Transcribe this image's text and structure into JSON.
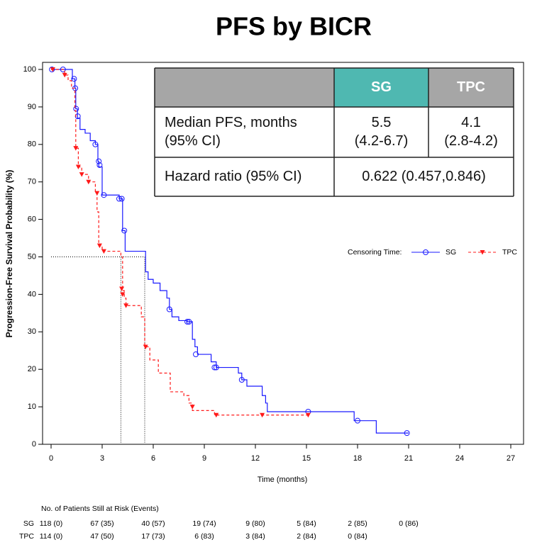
{
  "chart_data": {
    "type": "step",
    "title": "PFS by BICR",
    "x_label": "Time (months)",
    "y_label": "Progression-Free Survival Probability (%)",
    "xlim": [
      0,
      27
    ],
    "ylim": [
      0,
      100
    ],
    "xticks": [
      0,
      3,
      6,
      9,
      12,
      15,
      18,
      21,
      24,
      27
    ],
    "yticks": [
      0,
      10,
      20,
      30,
      40,
      50,
      60,
      70,
      80,
      90,
      100
    ],
    "reference": {
      "y": 50,
      "x": [
        4.1,
        5.5
      ]
    },
    "legend": {
      "title": "Censoring Time:",
      "position": "right"
    },
    "series": [
      {
        "name": "SG",
        "color": "#1a1aff",
        "dash": false,
        "marker": "circle",
        "x": [
          0,
          1.25,
          1.4,
          1.45,
          1.55,
          1.7,
          2.0,
          2.3,
          2.6,
          2.75,
          2.8,
          3.0,
          4.0,
          4.2,
          4.35,
          5.55,
          5.7,
          6.0,
          6.4,
          6.8,
          6.95,
          7.1,
          7.5,
          8.0,
          8.3,
          8.45,
          8.6,
          9.4,
          9.7,
          11.0,
          11.2,
          11.5,
          12.4,
          12.6,
          12.7,
          17.8,
          19.1,
          21.0
        ],
        "values": [
          100,
          97.5,
          95,
          89.5,
          87,
          84,
          83,
          81,
          80,
          75.5,
          74,
          66.5,
          65.5,
          57,
          51.5,
          46,
          44,
          43,
          41,
          39,
          36,
          34,
          33,
          32.7,
          28,
          26,
          24,
          22,
          20.5,
          19,
          17.2,
          15.5,
          13,
          11,
          8.7,
          6.3,
          3,
          3
        ],
        "censor_x": [
          0.05,
          0.7,
          1.35,
          1.42,
          1.47,
          1.57,
          2.6,
          2.8,
          2.85,
          3.1,
          4.0,
          4.15,
          4.3,
          6.95,
          8.0,
          8.1,
          8.5,
          9.6,
          9.7,
          11.2,
          15.1,
          18.0,
          20.9
        ],
        "censor_y": [
          100,
          100,
          97.5,
          95,
          89.5,
          87.5,
          80,
          75.5,
          74.5,
          66.5,
          65.5,
          65.5,
          57,
          36,
          32.7,
          32.7,
          24,
          20.5,
          20.5,
          17.2,
          8.7,
          6.3,
          3
        ]
      },
      {
        "name": "TPC",
        "color": "#ff1a1a",
        "dash": true,
        "marker": "triangle",
        "x": [
          0,
          0.8,
          1.0,
          1.2,
          1.4,
          1.45,
          1.6,
          1.8,
          2.2,
          2.6,
          2.7,
          2.8,
          3.0,
          4.1,
          4.2,
          4.3,
          4.4,
          5.3,
          5.5,
          5.8,
          6.3,
          7.0,
          7.8,
          8.1,
          8.3,
          9.6,
          15.2
        ],
        "values": [
          100,
          98.5,
          97,
          95,
          89,
          79,
          74,
          72,
          70,
          67,
          62,
          53,
          51.5,
          50,
          41,
          39,
          37,
          34,
          26,
          22.5,
          19,
          14,
          13,
          11,
          9,
          7.8,
          7.8
        ],
        "censor_x": [
          0.1,
          0.8,
          1.45,
          1.6,
          1.8,
          2.2,
          2.7,
          2.85,
          3.1,
          4.15,
          4.2,
          4.4,
          5.55,
          8.3,
          9.7,
          12.4,
          15.1
        ],
        "censor_y": [
          100,
          98.5,
          79,
          74,
          72,
          70,
          67,
          53,
          51.5,
          41.5,
          40,
          37,
          26,
          10,
          7.8,
          7.8,
          7.8
        ]
      }
    ],
    "table": {
      "header": [
        "SG",
        "TPC"
      ],
      "header_colors": [
        "#4fb8b1",
        "#a6a6a6"
      ],
      "corner_color": "#a6a6a6",
      "rows": [
        {
          "label": [
            "Median PFS, months",
            "(95% CI)"
          ],
          "cells": [
            [
              "5.5",
              "(4.2-6.7)"
            ],
            [
              "4.1",
              "(2.8-4.2)"
            ]
          ]
        },
        {
          "label": [
            "Hazard ratio (95% CI)"
          ],
          "cells": [
            [
              "0.622 (0.457,0.846)"
            ]
          ]
        }
      ]
    },
    "risk_table": {
      "title": "No. of Patients Still at Risk (Events)",
      "rows": [
        {
          "name": "SG",
          "values": [
            "118 (0)",
            "67 (35)",
            "40 (57)",
            "19 (74)",
            "9 (80)",
            "5 (84)",
            "2 (85)",
            "0 (86)"
          ]
        },
        {
          "name": "TPC",
          "values": [
            "114 (0)",
            "47 (50)",
            "17 (73)",
            "6 (83)",
            "3 (84)",
            "2 (84)",
            "0 (84)"
          ]
        }
      ]
    }
  }
}
